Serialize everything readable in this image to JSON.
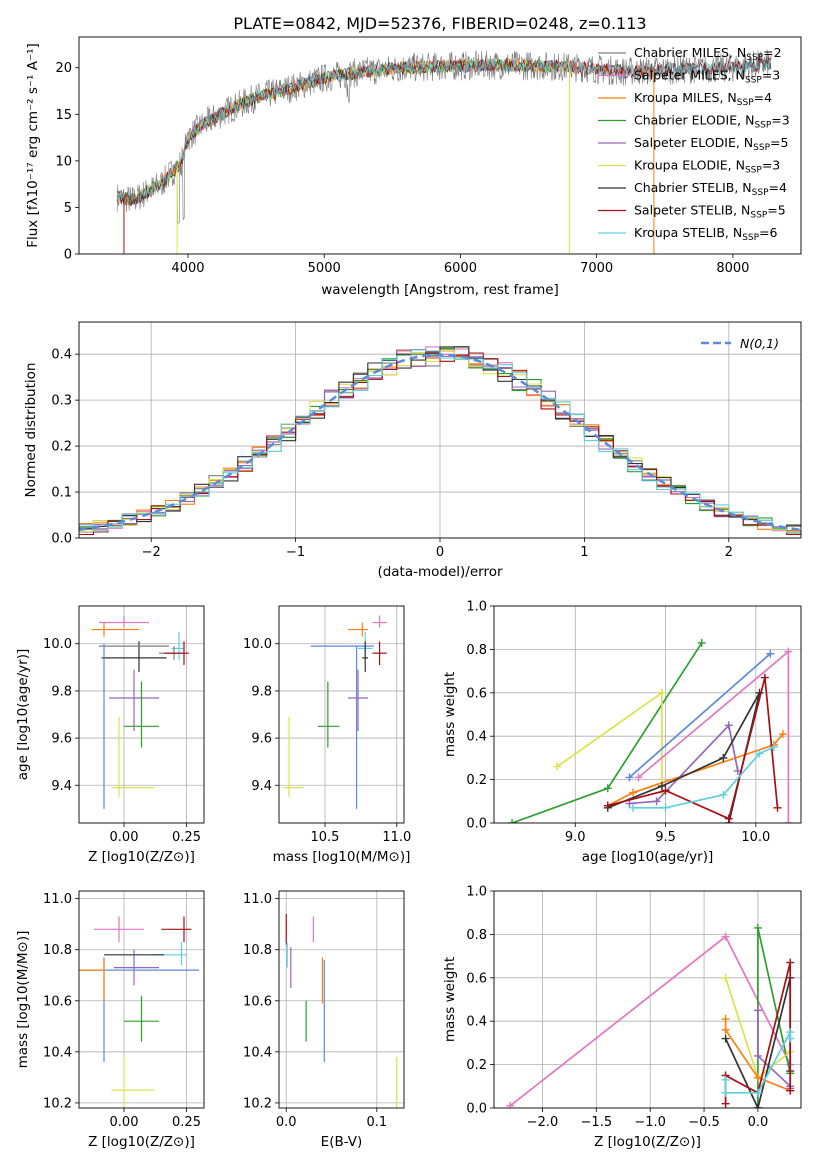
{
  "figure_title": "PLATE=0842, MJD=52376, FIBERID=0248, z=0.113",
  "colors": {
    "Chabrier MILES": "#7f7f7f",
    "Salpeter MILES": "#e377c2",
    "Kroupa MILES": "#ff7f0e",
    "Chabrier ELODIE": "#2ca02c",
    "Salpeter ELODIE": "#9467bd",
    "Kroupa ELODIE": "#dde24a",
    "Chabrier STELIB": "#333333",
    "Salpeter STELIB": "#a50f15",
    "Kroupa STELIB": "#5fd0de"
  },
  "chart_data": [
    {
      "id": "spectrum",
      "type": "line",
      "xlabel": "wavelength [Angstrom, rest frame]",
      "ylabel": "Flux [f_λ 10^-17 erg cm^-2 s^-1 A^-1]",
      "xlim": [
        3200,
        8500
      ],
      "ylim": [
        0,
        23.3
      ],
      "xticks": [
        4000,
        5000,
        6000,
        7000,
        8000
      ],
      "yticks": [
        0,
        5,
        10,
        15,
        20
      ],
      "grid": false,
      "legend_position": "right",
      "legend": [
        {
          "label": "Chabrier MILES, N_SSP=2",
          "color": "#7f7f7f"
        },
        {
          "label": "Salpeter MILES, N_SSP=3",
          "color": "#e377c2"
        },
        {
          "label": "Kroupa MILES, N_SSP=4",
          "color": "#ff7f0e"
        },
        {
          "label": "Chabrier ELODIE, N_SSP=3",
          "color": "#2ca02c"
        },
        {
          "label": "Salpeter ELODIE, N_SSP=5",
          "color": "#9467bd"
        },
        {
          "label": "Kroupa ELODIE, N_SSP=3",
          "color": "#dde24a"
        },
        {
          "label": "Chabrier STELIB, N_SSP=4",
          "color": "#333333"
        },
        {
          "label": "Salpeter STELIB, N_SSP=5",
          "color": "#a50f15"
        },
        {
          "label": "Kroupa STELIB, N_SSP=6",
          "color": "#5fd0de"
        }
      ],
      "continuum_x": [
        3450,
        3600,
        3800,
        3950,
        4000,
        4100,
        4300,
        4500,
        4800,
        5000,
        5300,
        5600,
        6000,
        6300,
        6600,
        6900,
        7200,
        7600,
        8000,
        8300
      ],
      "continuum_y": [
        6.2,
        5.8,
        7.5,
        9.8,
        12.5,
        13.8,
        15.5,
        16.8,
        18.0,
        18.9,
        19.6,
        20.0,
        20.2,
        20.3,
        20.2,
        20.0,
        19.6,
        19.8,
        20.0,
        20.5
      ]
    },
    {
      "id": "residuals",
      "type": "histogram",
      "xlabel": "(data-model)/error",
      "ylabel": "Normed distribution",
      "xlim": [
        -2.5,
        2.5
      ],
      "ylim": [
        0,
        0.47
      ],
      "xticks": [
        -2,
        -1,
        0,
        1,
        2
      ],
      "yticks": [
        0.0,
        0.1,
        0.2,
        0.3,
        0.4
      ],
      "grid": true,
      "legend_label": "N(0,1)",
      "legend_position": "top-right",
      "bin_width": 0.1,
      "bin_start": -2.5
    },
    {
      "id": "age_vs_Z",
      "type": "errorbar",
      "xlabel": "Z [log10(Z/Z⊙)]",
      "ylabel": "age [log10(age/yr)]",
      "xlim": [
        -0.18,
        0.32
      ],
      "ylim": [
        9.24,
        10.16
      ],
      "xticks": [
        0.0,
        0.25
      ],
      "yticks": [
        9.4,
        9.6,
        9.8,
        10.0
      ],
      "points": [
        {
          "model": "Salpeter MILES",
          "x": 0.0,
          "xerr": [
            0.1,
            0.1
          ],
          "y": 10.09,
          "yerr": [
            0.02,
            0.03
          ]
        },
        {
          "model": "Kroupa MILES",
          "x": -0.08,
          "xerr": [
            0.05,
            0.14
          ],
          "y": 10.06,
          "yerr": [
            0.03,
            0.03
          ]
        },
        {
          "model": "Chabrier STELIB",
          "x": 0.06,
          "xerr": [
            0.15,
            0.11
          ],
          "y": 9.94,
          "yerr": [
            0.06,
            0.07
          ]
        },
        {
          "model": "Kroupa STELIB",
          "x": 0.22,
          "xerr": [
            0.03,
            0.02
          ],
          "y": 9.98,
          "yerr": [
            0.05,
            0.07
          ]
        },
        {
          "model": "Chabrier MILES",
          "x": 0.2,
          "xerr": [
            0.06,
            0.04
          ],
          "y": 9.96,
          "yerr": [
            0.03,
            0.03
          ]
        },
        {
          "model": "Salpeter STELIB",
          "x": 0.24,
          "xerr": [
            0.08,
            0.02
          ],
          "y": 9.96,
          "yerr": [
            0.05,
            0.05
          ]
        },
        {
          "model": "Chabrier MILES b",
          "x": -0.07,
          "xerr": [
            0.03,
            0.25
          ],
          "y": 9.99,
          "yerr": [
            0.0,
            0.0
          ]
        },
        {
          "model": "Salpeter ELODIE",
          "x": 0.04,
          "xerr": [
            0.1,
            0.1
          ],
          "y": 9.77,
          "yerr": [
            0.14,
            0.12
          ]
        },
        {
          "model": "Chabrier ELODIE",
          "x": 0.07,
          "xerr": [
            0.07,
            0.07
          ],
          "y": 9.65,
          "yerr": [
            0.09,
            0.19
          ]
        },
        {
          "model": "Kroupa ELODIE",
          "x": -0.02,
          "xerr": [
            0.03,
            0.14
          ],
          "y": 9.39,
          "yerr": [
            0.04,
            0.3
          ]
        },
        {
          "model": "Blue",
          "x": -0.08,
          "xerr": [
            0.0,
            0.0
          ],
          "y": 9.64,
          "yerr": [
            0.34,
            0.36
          ]
        }
      ]
    },
    {
      "id": "age_vs_mass",
      "type": "errorbar",
      "xlabel": "mass [log10(M/M⊙)]",
      "ylabel": "",
      "xlim": [
        10.18,
        11.05
      ],
      "ylim": [
        9.24,
        10.16
      ],
      "xticks": [
        10.5,
        11.0
      ],
      "yticks": [
        9.4,
        9.6,
        9.8,
        10.0
      ],
      "points": [
        {
          "model": "Salpeter MILES",
          "x": 10.88,
          "xerr": [
            0.05,
            0.05
          ],
          "y": 10.09,
          "yerr": [
            0.02,
            0.03
          ]
        },
        {
          "model": "Kroupa MILES",
          "x": 10.76,
          "xerr": [
            0.1,
            0.04
          ],
          "y": 10.06,
          "yerr": [
            0.03,
            0.03
          ]
        },
        {
          "model": "Blue",
          "x": 10.72,
          "xerr": [
            0.32,
            0.12
          ],
          "y": 9.99,
          "yerr": [
            0.69,
            0.0
          ]
        },
        {
          "model": "Kroupa STELIB",
          "x": 10.78,
          "xerr": [
            0.05,
            0.05
          ],
          "y": 9.98,
          "yerr": [
            0.05,
            0.07
          ]
        },
        {
          "model": "Chabrier STELIB",
          "x": 10.78,
          "xerr": [
            0.02,
            0.02
          ],
          "y": 9.94,
          "yerr": [
            0.06,
            0.07
          ]
        },
        {
          "model": "Salpeter STELIB",
          "x": 10.88,
          "xerr": [
            0.05,
            0.05
          ],
          "y": 9.96,
          "yerr": [
            0.05,
            0.05
          ]
        },
        {
          "model": "Salpeter ELODIE",
          "x": 10.73,
          "xerr": [
            0.07,
            0.07
          ],
          "y": 9.77,
          "yerr": [
            0.14,
            0.12
          ]
        },
        {
          "model": "Chabrier ELODIE",
          "x": 10.52,
          "xerr": [
            0.07,
            0.08
          ],
          "y": 9.65,
          "yerr": [
            0.09,
            0.19
          ]
        },
        {
          "model": "Kroupa ELODIE",
          "x": 10.25,
          "xerr": [
            0.04,
            0.1
          ],
          "y": 9.39,
          "yerr": [
            0.04,
            0.3
          ]
        }
      ]
    },
    {
      "id": "weight_vs_age",
      "type": "line",
      "xlabel": "age [log10(age/yr)]",
      "ylabel": "mass weight",
      "xlim": [
        8.55,
        10.25
      ],
      "ylim": [
        0.0,
        1.0
      ],
      "xticks": [
        9.0,
        9.5,
        10.0
      ],
      "yticks": [
        0.0,
        0.2,
        0.4,
        0.6,
        0.8,
        1.0
      ],
      "grid": true,
      "series": [
        {
          "model": "Chabrier ELODIE",
          "x": [
            8.65,
            9.18,
            9.7
          ],
          "y": [
            0.0,
            0.16,
            0.83
          ]
        },
        {
          "model": "Kroupa ELODIE",
          "x": [
            8.9,
            9.48,
            9.48
          ],
          "y": [
            0.26,
            0.6,
            0.14
          ]
        },
        {
          "model": "Blue",
          "x": [
            9.3,
            10.08
          ],
          "y": [
            0.21,
            0.78
          ]
        },
        {
          "model": "Salpeter MILES",
          "x": [
            9.35,
            10.18,
            10.18
          ],
          "y": [
            0.21,
            0.79,
            0.0
          ]
        },
        {
          "model": "Kroupa MILES",
          "x": [
            9.18,
            9.32,
            10.1,
            10.15
          ],
          "y": [
            0.08,
            0.14,
            0.36,
            0.41
          ]
        },
        {
          "model": "Salpeter ELODIE",
          "x": [
            9.3,
            9.45,
            9.85,
            9.9
          ],
          "y": [
            0.09,
            0.1,
            0.45,
            0.24
          ]
        },
        {
          "model": "Chabrier STELIB",
          "x": [
            9.18,
            9.48,
            9.82,
            10.02,
            9.85
          ],
          "y": [
            0.07,
            0.17,
            0.3,
            0.6,
            0.0
          ]
        },
        {
          "model": "Salpeter STELIB",
          "x": [
            9.18,
            9.5,
            9.85,
            10.05,
            10.12
          ],
          "y": [
            0.08,
            0.15,
            0.02,
            0.67,
            0.07
          ]
        },
        {
          "model": "Kroupa STELIB",
          "x": [
            9.32,
            9.5,
            9.82,
            10.02,
            10.1
          ],
          "y": [
            0.07,
            0.07,
            0.13,
            0.32,
            0.35
          ]
        }
      ]
    },
    {
      "id": "mass_vs_Z",
      "type": "errorbar",
      "xlabel": "Z [log10(Z/Z⊙)]",
      "ylabel": "mass [log10(M/M⊙)]",
      "xlim": [
        -0.18,
        0.32
      ],
      "ylim": [
        10.18,
        11.03
      ],
      "xticks": [
        0.0,
        0.25
      ],
      "yticks": [
        10.2,
        10.4,
        10.6,
        10.8,
        11.0
      ],
      "points": [
        {
          "model": "Salpeter MILES",
          "x": -0.02,
          "xerr": [
            0.1,
            0.1
          ],
          "y": 10.88,
          "yerr": [
            0.05,
            0.05
          ]
        },
        {
          "model": "Salpeter STELIB",
          "x": 0.24,
          "xerr": [
            0.09,
            0.03
          ],
          "y": 10.88,
          "yerr": [
            0.05,
            0.05
          ]
        },
        {
          "model": "Salpeter ELODIE",
          "x": 0.04,
          "xerr": [
            0.08,
            0.1
          ],
          "y": 10.73,
          "yerr": [
            0.07,
            0.07
          ]
        },
        {
          "model": "Kroupa STELIB",
          "x": 0.23,
          "xerr": [
            0.12,
            0.02
          ],
          "y": 10.78,
          "yerr": [
            0.04,
            0.05
          ]
        },
        {
          "model": "Chabrier STELIB",
          "x": -0.08,
          "xerr": [
            0.0,
            0.24
          ],
          "y": 10.78,
          "yerr": [
            0.0,
            0.0
          ]
        },
        {
          "model": "Blue",
          "x": -0.08,
          "xerr": [
            0.1,
            0.38
          ],
          "y": 10.72,
          "yerr": [
            0.36,
            0.05
          ]
        },
        {
          "model": "Kroupa MILES",
          "x": -0.08,
          "xerr": [
            0.1,
            0.0
          ],
          "y": 10.72,
          "yerr": [
            0.12,
            0.04
          ]
        },
        {
          "model": "Chabrier ELODIE",
          "x": 0.07,
          "xerr": [
            0.07,
            0.07
          ],
          "y": 10.52,
          "yerr": [
            0.08,
            0.1
          ]
        },
        {
          "model": "Kroupa ELODIE",
          "x": 0.0,
          "xerr": [
            0.05,
            0.12
          ],
          "y": 10.25,
          "yerr": [
            0.1,
            0.13
          ]
        }
      ]
    },
    {
      "id": "mass_vs_EBV",
      "type": "errorbar",
      "xlabel": "E(B-V)",
      "ylabel": "",
      "xlim": [
        -0.008,
        0.13
      ],
      "ylim": [
        10.18,
        11.03
      ],
      "xticks": [
        0.0,
        0.1
      ],
      "yticks": [
        10.2,
        10.4,
        10.6,
        10.8,
        11.0
      ],
      "points": [
        {
          "model": "Salpeter STELIB",
          "x": 0.0,
          "xerr": [
            0,
            0
          ],
          "y": 10.88,
          "yerr": [
            0.06,
            0.06
          ]
        },
        {
          "model": "Kroupa STELIB",
          "x": 0.001,
          "xerr": [
            0,
            0
          ],
          "y": 10.78,
          "yerr": [
            0.05,
            0.05
          ]
        },
        {
          "model": "Salpeter ELODIE",
          "x": 0.005,
          "xerr": [
            0,
            0
          ],
          "y": 10.73,
          "yerr": [
            0.08,
            0.08
          ]
        },
        {
          "model": "Salpeter MILES",
          "x": 0.03,
          "xerr": [
            0,
            0
          ],
          "y": 10.88,
          "yerr": [
            0.05,
            0.05
          ]
        },
        {
          "model": "Kroupa MILES",
          "x": 0.04,
          "xerr": [
            0,
            0
          ],
          "y": 10.68,
          "yerr": [
            0.09,
            0.09
          ]
        },
        {
          "model": "Blue",
          "x": 0.042,
          "xerr": [
            0,
            0
          ],
          "y": 10.56,
          "yerr": [
            0.2,
            0.2
          ]
        },
        {
          "model": "Chabrier ELODIE",
          "x": 0.022,
          "xerr": [
            0,
            0
          ],
          "y": 10.52,
          "yerr": [
            0.08,
            0.08
          ]
        },
        {
          "model": "Kroupa ELODIE",
          "x": 0.122,
          "xerr": [
            0,
            0
          ],
          "y": 10.25,
          "yerr": [
            0.13,
            0.13
          ]
        }
      ]
    },
    {
      "id": "weight_vs_Z",
      "type": "line",
      "xlabel": "Z [log10(Z/Z⊙)]",
      "ylabel": "mass weight",
      "xlim": [
        -2.45,
        0.4
      ],
      "ylim": [
        0.0,
        1.0
      ],
      "xticks": [
        -2.0,
        -1.5,
        -1.0,
        -0.5,
        0.0
      ],
      "yticks": [
        0.0,
        0.2,
        0.4,
        0.6,
        0.8,
        1.0
      ],
      "grid": true,
      "series": [
        {
          "model": "Salpeter MILES",
          "x": [
            -2.3,
            -0.3,
            0.3,
            0.3
          ],
          "y": [
            0.01,
            0.79,
            0.2,
            0.08
          ]
        },
        {
          "model": "Chabrier ELODIE",
          "x": [
            0.0,
            0.0,
            0.3
          ],
          "y": [
            0.0,
            0.83,
            0.16
          ]
        },
        {
          "model": "Kroupa ELODIE",
          "x": [
            -0.3,
            0.0,
            0.3
          ],
          "y": [
            0.6,
            0.14,
            0.26
          ]
        },
        {
          "model": "Kroupa MILES",
          "x": [
            -0.3,
            -0.3,
            0.0,
            0.3
          ],
          "y": [
            0.41,
            0.36,
            0.14,
            0.08
          ]
        },
        {
          "model": "Salpeter ELODIE",
          "x": [
            0.0,
            0.0,
            0.3,
            0.3
          ],
          "y": [
            0.45,
            0.24,
            0.1,
            0.09
          ]
        },
        {
          "model": "Chabrier STELIB",
          "x": [
            -0.3,
            0.0,
            0.3,
            0.3
          ],
          "y": [
            0.32,
            0.0,
            0.6,
            0.17
          ]
        },
        {
          "model": "Salpeter STELIB",
          "x": [
            -0.3,
            -0.3,
            0.0,
            0.3,
            0.3
          ],
          "y": [
            0.02,
            0.15,
            0.07,
            0.67,
            0.08
          ]
        },
        {
          "model": "Kroupa STELIB",
          "x": [
            -0.3,
            -0.3,
            0.0,
            0.3,
            0.3
          ],
          "y": [
            0.13,
            0.07,
            0.07,
            0.35,
            0.32
          ]
        }
      ]
    }
  ]
}
